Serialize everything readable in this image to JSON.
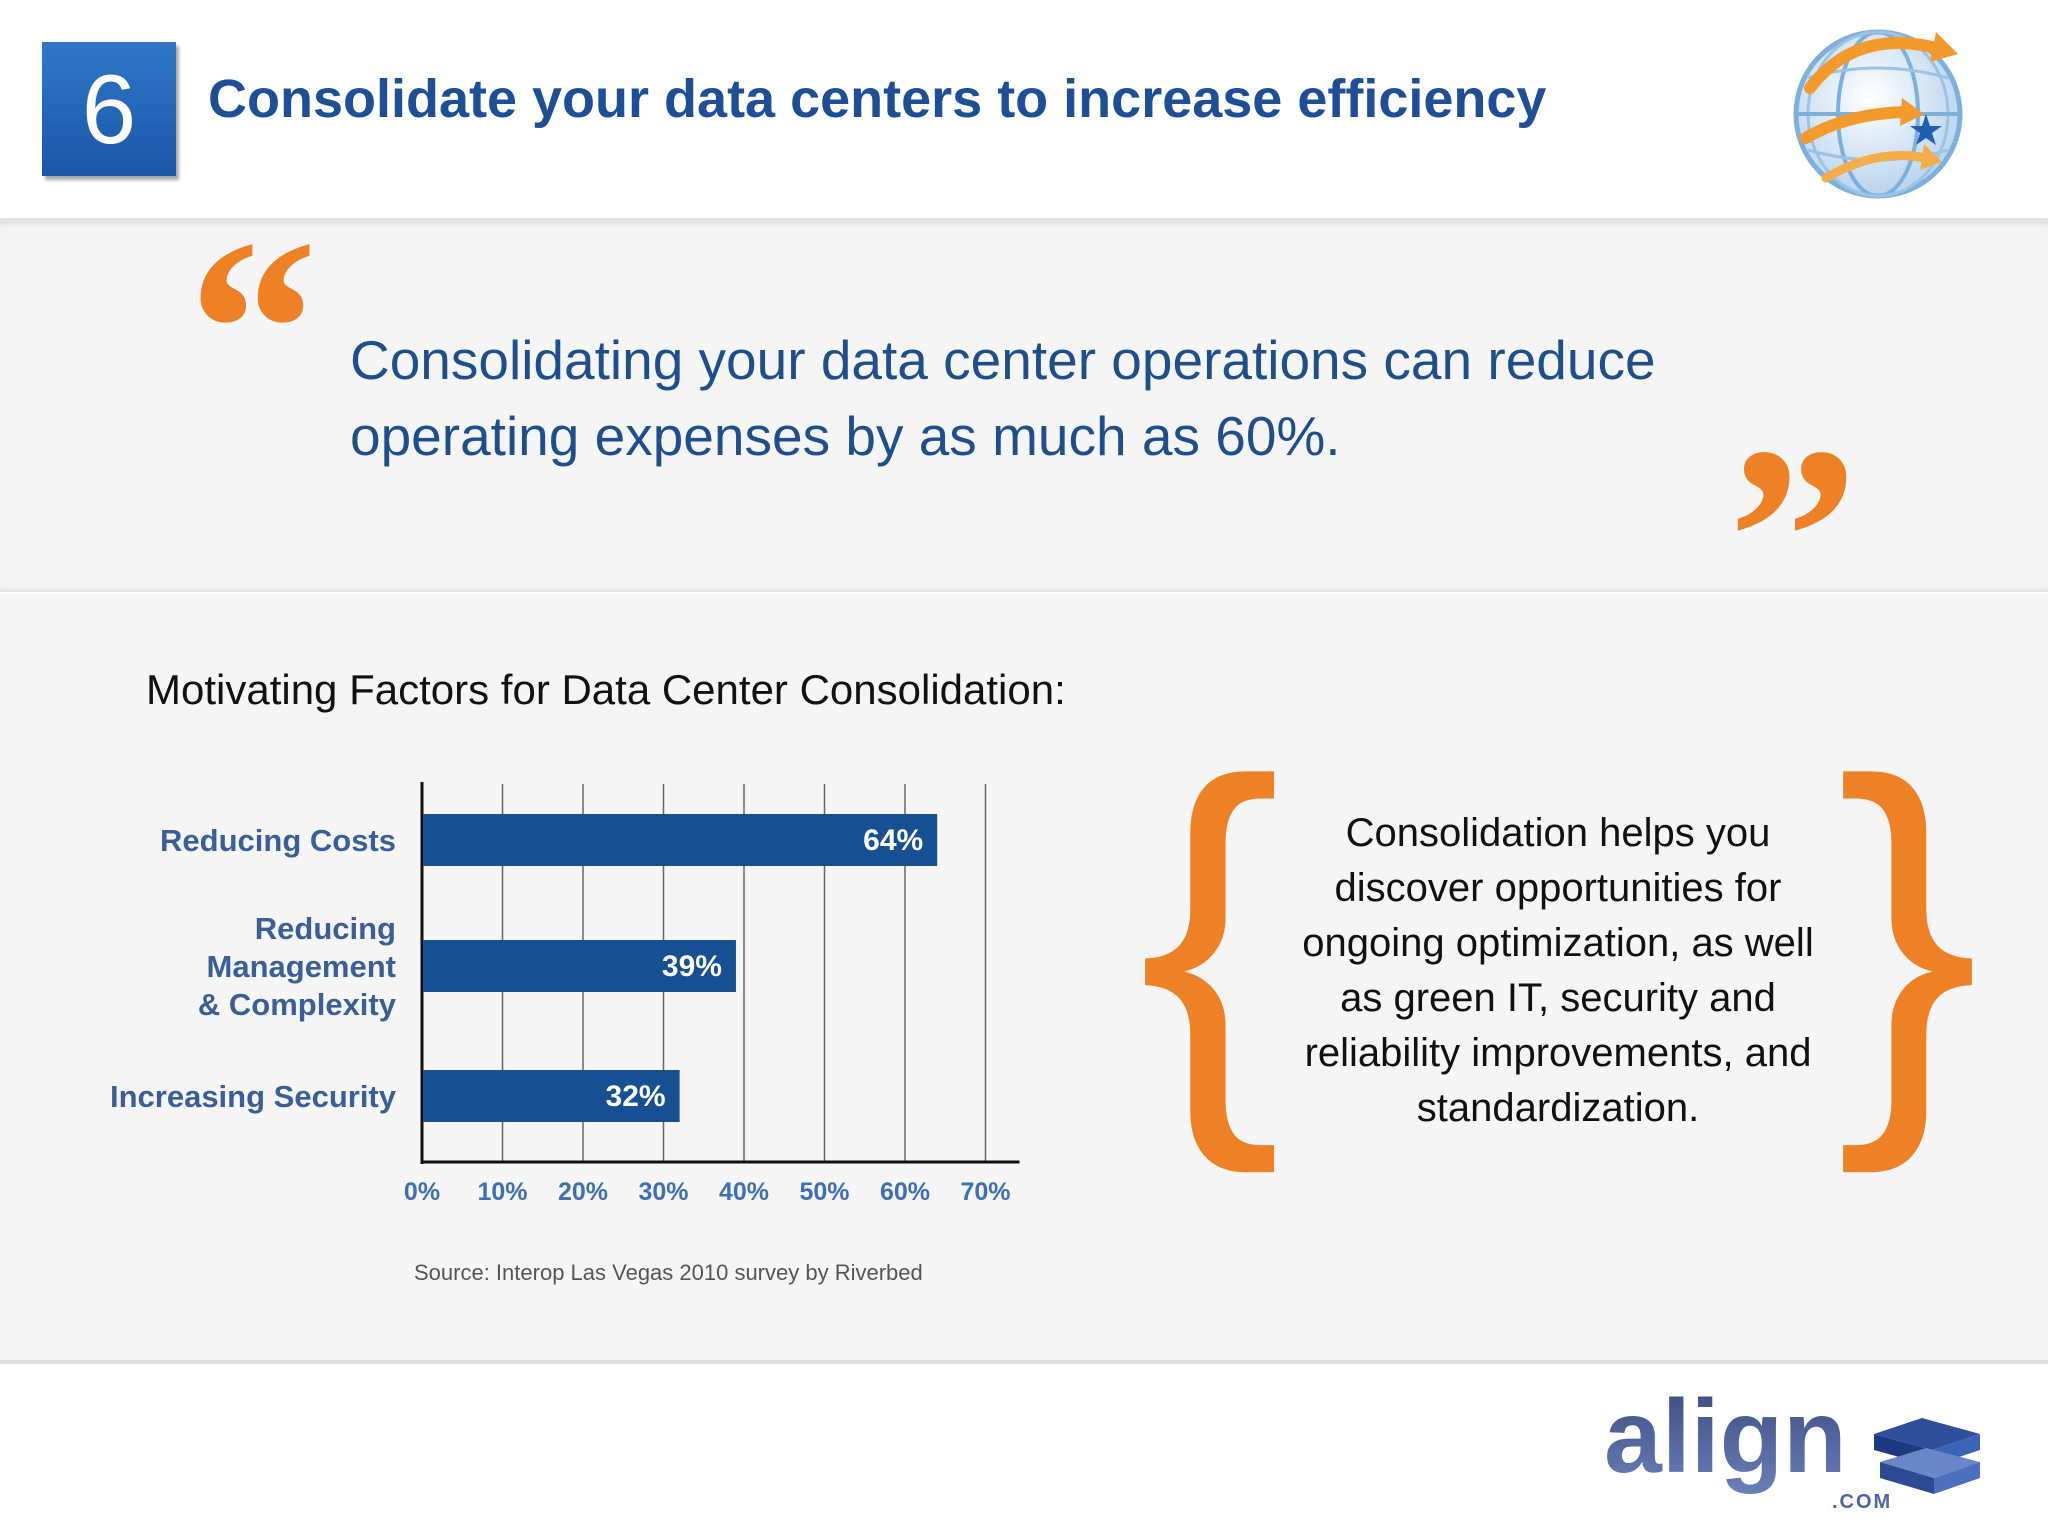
{
  "slide": {
    "number": "6",
    "title": "Consolidate your data centers to increase efficiency"
  },
  "quote": {
    "open_mark": "“",
    "text": "Consolidating your data center operations can reduce operating expenses by as much as 60%.",
    "close_mark": "”"
  },
  "chart_section": {
    "title": "Motivating Factors for Data Center Consolidation:",
    "source": "Source: Interop Las Vegas 2010 survey by Riverbed"
  },
  "callout": {
    "open_brace": "{",
    "text": "Consolidation helps you discover opportunities for ongoing optimization, as well as green IT, security and reliability improvements, and standardization.",
    "close_brace": "}"
  },
  "logo": {
    "word": "align",
    "suffix": ".COM"
  },
  "colors": {
    "title_blue": "#1d4e96",
    "bar_blue": "#174f93",
    "accent_orange": "#ee8126"
  },
  "icons": {
    "globe": "globe-arrows-icon",
    "logo": "align-stack-icon"
  },
  "chart_data": {
    "type": "bar",
    "orientation": "horizontal",
    "categories": [
      [
        "Reducing Costs"
      ],
      [
        "Reducing",
        "Management",
        "& Complexity"
      ],
      [
        "Increasing Security"
      ]
    ],
    "values": [
      64,
      39,
      32
    ],
    "data_labels": [
      "64%",
      "39%",
      "32%"
    ],
    "x_ticks": [
      "0%",
      "10%",
      "20%",
      "30%",
      "40%",
      "50%",
      "60%",
      "70%"
    ],
    "xlim": [
      0,
      70
    ],
    "grid": true,
    "title": "",
    "xlabel": "",
    "ylabel": ""
  }
}
